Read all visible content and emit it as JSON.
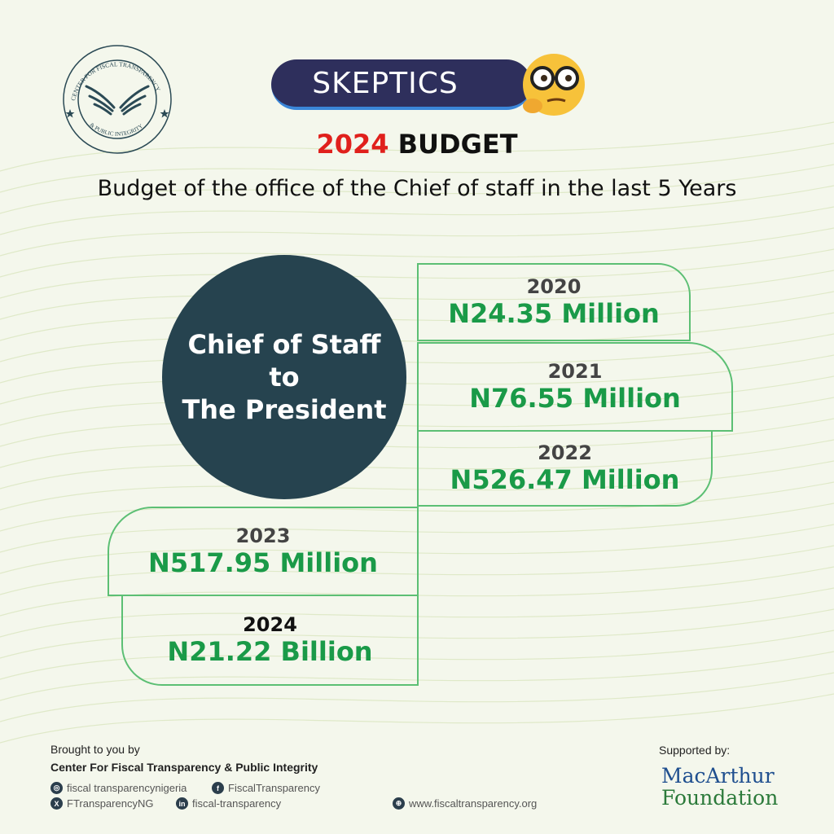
{
  "logo": {
    "text_top": "CENTER FOR FISCAL TRANSPARENCY",
    "text_bottom": "& PUBLIC INTEGRITY"
  },
  "badge": {
    "label": "SKEPTICS",
    "icon": "thinking-face-with-glasses-emoji"
  },
  "title": {
    "year": "2024",
    "rest": "BUDGET"
  },
  "subtitle": "Budget of the office of the Chief of staff in the last 5 Years",
  "center": {
    "line1": "Chief of Staff",
    "line2": "to",
    "line3": "The President"
  },
  "budgets": [
    {
      "year": "2020",
      "amount": "N24.35 Million"
    },
    {
      "year": "2021",
      "amount": "N76.55 Million"
    },
    {
      "year": "2022",
      "amount": "N526.47 Million"
    },
    {
      "year": "2023",
      "amount": "N517.95 Million"
    },
    {
      "year": "2024",
      "amount": "N21.22 Billion"
    }
  ],
  "footer": {
    "brought_by": "Brought to you by",
    "org": "Center For Fiscal Transparency & Public Integrity",
    "instagram": "fiscal transparencynigeria",
    "facebook": "FiscalTransparency",
    "x": "FTransparencyNG",
    "linkedin": "fiscal-transparency",
    "website": "www.fiscaltransparency.org",
    "supported_by": "Supported by:",
    "sponsor_line1": "MacArthur",
    "sponsor_line2": "Foundation"
  },
  "colors": {
    "accent_green": "#1a9a48",
    "circle": "#26434f",
    "red": "#e0201c",
    "pill": "#2e2f5c"
  }
}
